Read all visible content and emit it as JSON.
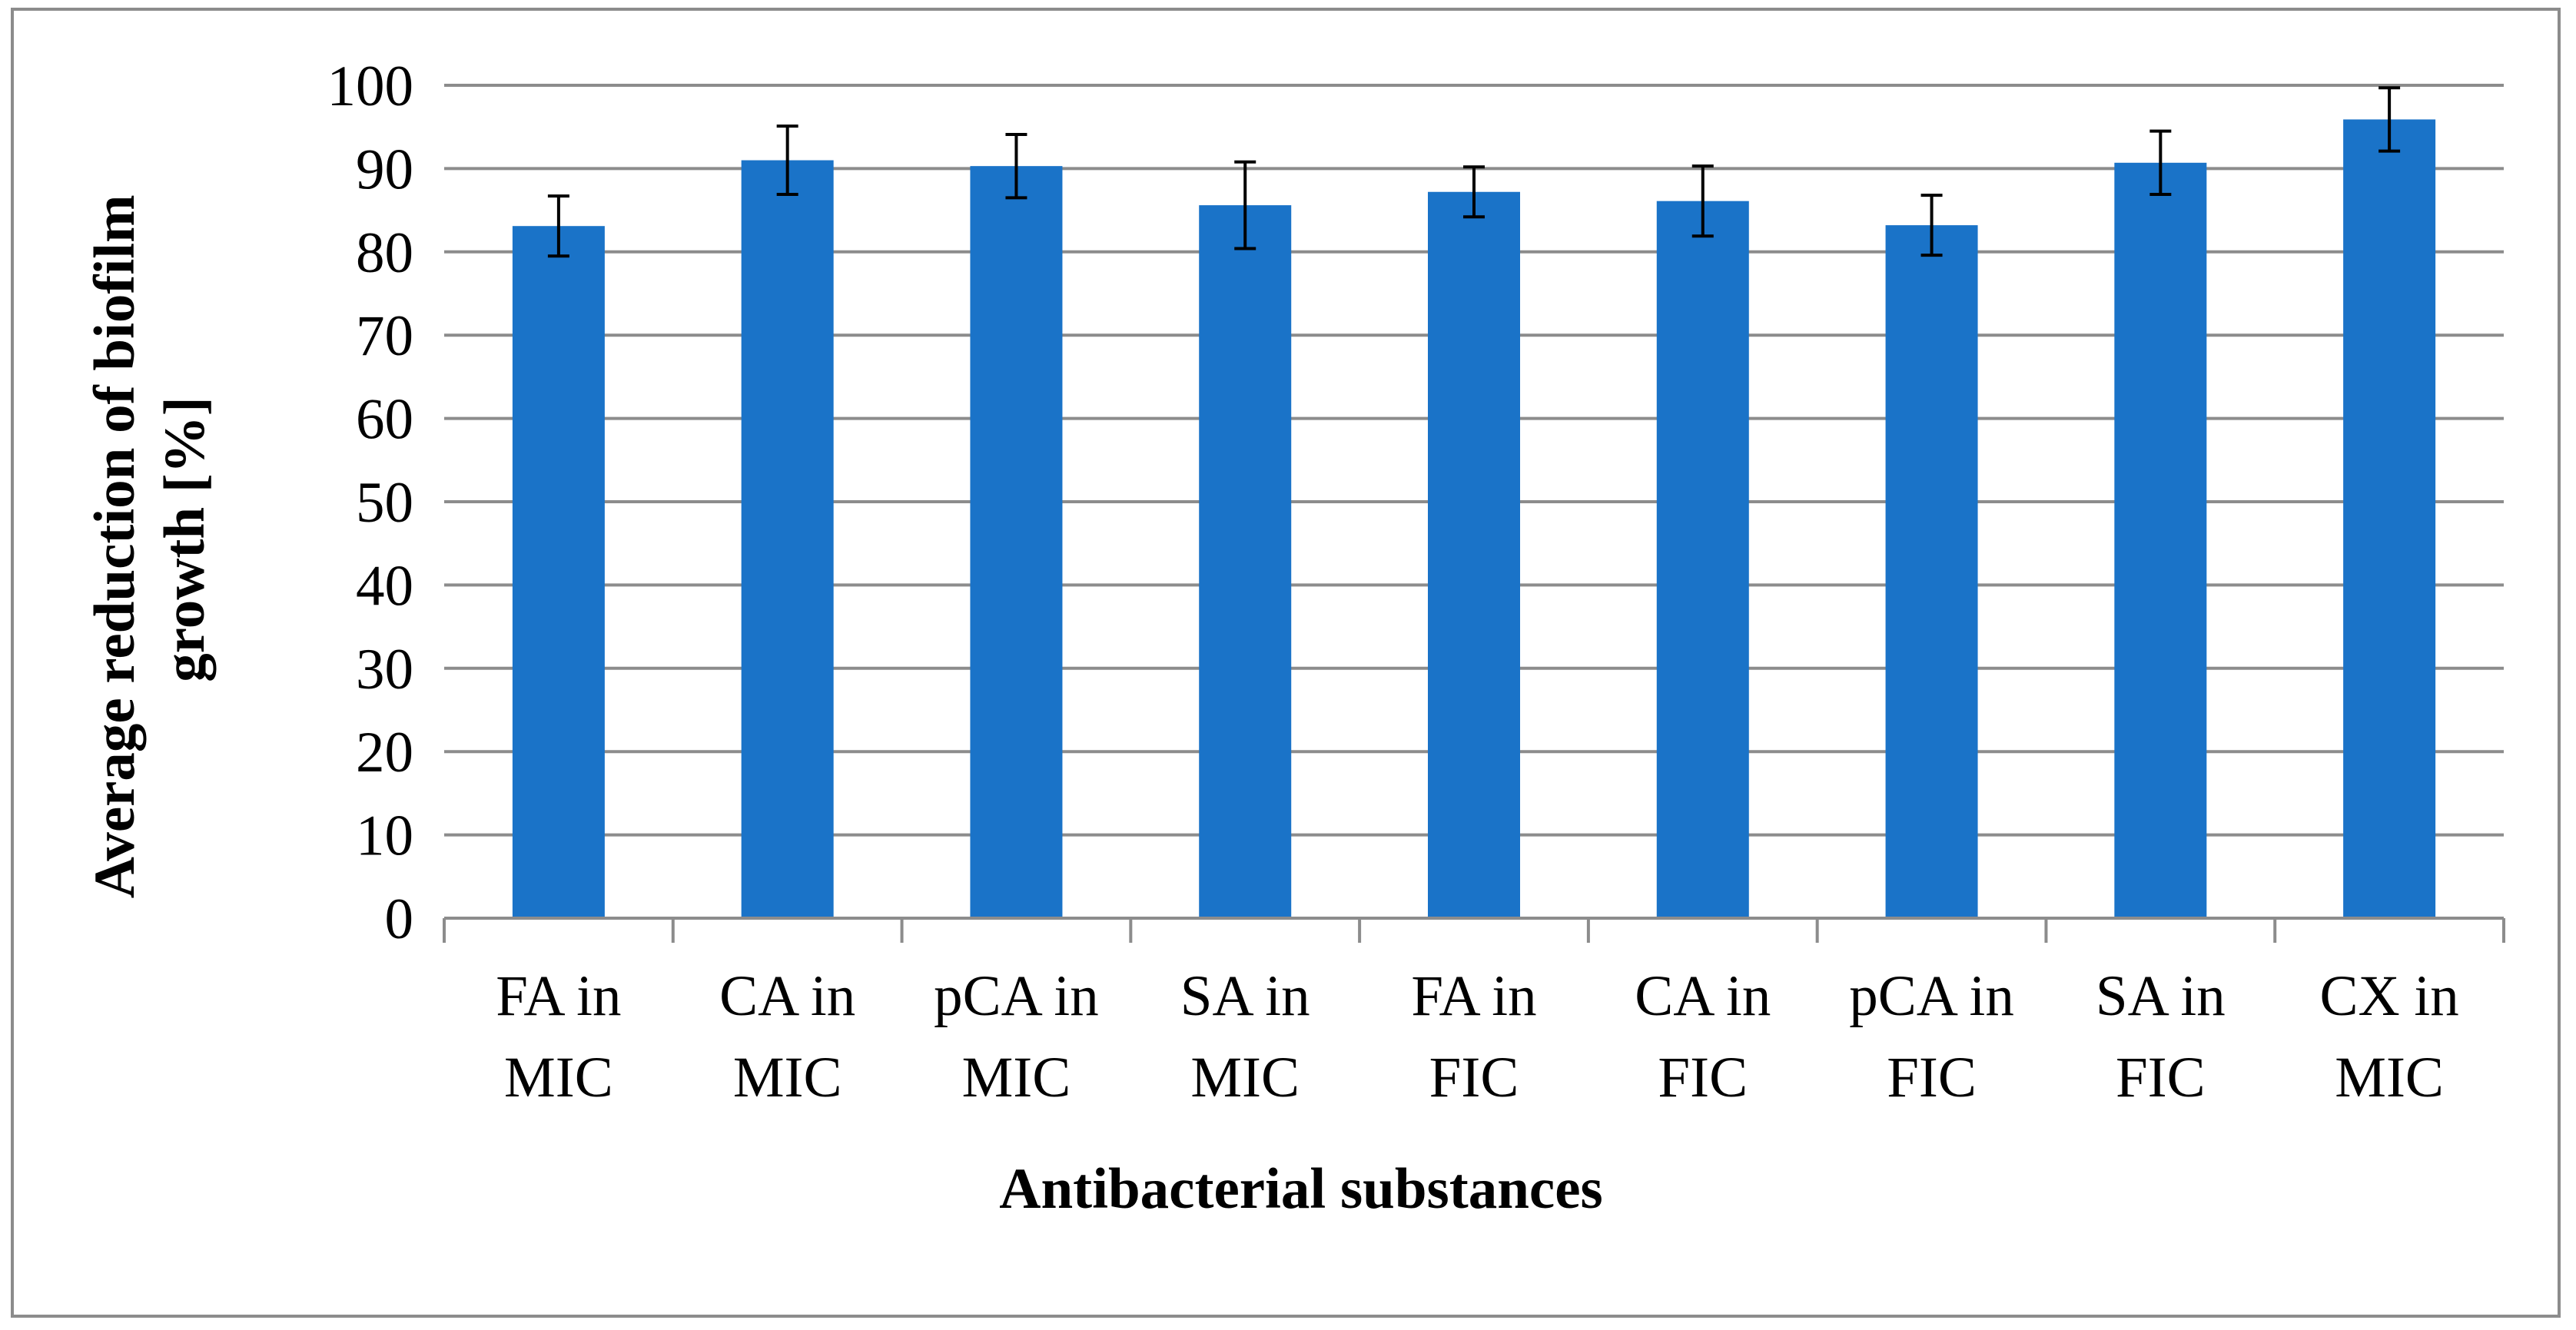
{
  "chart_data": {
    "type": "bar",
    "title": "",
    "xlabel": "Antibacterial substances",
    "ylabel_lines": [
      "Average reduction of biofilm",
      "growth [%]"
    ],
    "ylim": [
      0,
      100
    ],
    "ytick_step": 10,
    "grid": true,
    "legend": "none",
    "categories": [
      [
        "FA in",
        "MIC"
      ],
      [
        "CA in",
        "MIC"
      ],
      [
        "pCA in",
        "MIC"
      ],
      [
        "SA in",
        "MIC"
      ],
      [
        "FA in",
        "FIC"
      ],
      [
        "CA in",
        "FIC"
      ],
      [
        "pCA in",
        "FIC"
      ],
      [
        "SA in",
        "FIC"
      ],
      [
        "CX in",
        "MIC"
      ]
    ],
    "series": [
      {
        "name": "Average reduction of biofilm growth",
        "values": [
          83.1,
          91.0,
          90.3,
          85.6,
          87.2,
          86.1,
          83.2,
          90.7,
          95.9
        ],
        "error": [
          3.6,
          4.1,
          3.8,
          5.2,
          3.0,
          4.2,
          3.6,
          3.8,
          3.8
        ]
      }
    ],
    "colors": {
      "bar": "#1a73c8",
      "grid": "#8c8c8c",
      "axis": "#8c8c8c",
      "error_bar": "#000000"
    }
  }
}
